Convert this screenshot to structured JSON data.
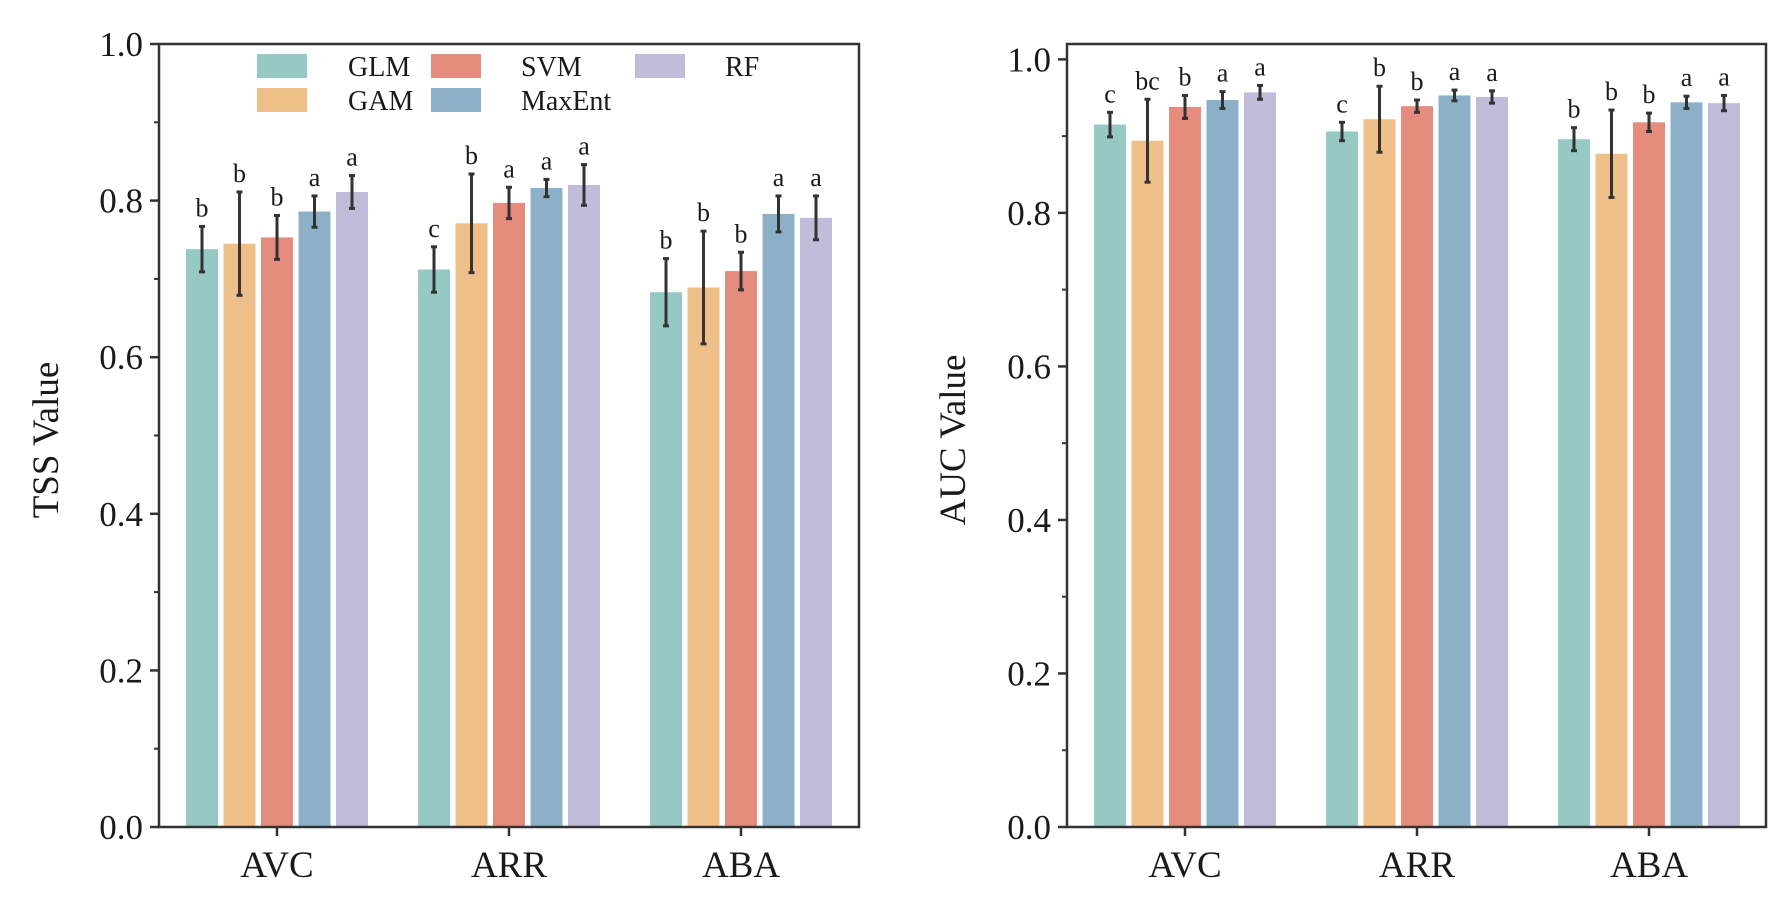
{
  "colors": {
    "GLM": "#96c8c4",
    "GAM": "#efbf8a",
    "SVM": "#e58c7e",
    "MaxEnt": "#8cb0c8",
    "RF": "#c0bcda",
    "axis": "#333333",
    "errorbar": "#333333"
  },
  "legend": {
    "placement": "top-center (left panel)",
    "entries": [
      "GLM",
      "GAM",
      "SVM",
      "MaxEnt",
      "RF"
    ]
  },
  "chart_data": [
    {
      "type": "bar",
      "id": "tss",
      "title": "",
      "xlabel": "",
      "ylabel": "TSS Value",
      "ylim": [
        0.0,
        1.0
      ],
      "yticks": [
        "0.0",
        "0.2",
        "0.4",
        "0.6",
        "0.8",
        "1.0"
      ],
      "ytick_values": [
        0.0,
        0.2,
        0.4,
        0.6,
        0.8,
        1.0
      ],
      "categories": [
        "AVC",
        "ARR",
        "ABA"
      ],
      "series": [
        {
          "name": "GLM",
          "values": [
            0.738,
            0.712,
            0.683
          ],
          "errors": [
            0.029,
            0.029,
            0.043
          ],
          "labels": [
            "b",
            "c",
            "b"
          ]
        },
        {
          "name": "GAM",
          "values": [
            0.745,
            0.771,
            0.689
          ],
          "errors": [
            0.066,
            0.063,
            0.072
          ],
          "labels": [
            "b",
            "b",
            "b"
          ]
        },
        {
          "name": "SVM",
          "values": [
            0.753,
            0.797,
            0.71
          ],
          "errors": [
            0.028,
            0.02,
            0.024
          ],
          "labels": [
            "b",
            "a",
            "b"
          ]
        },
        {
          "name": "MaxEnt",
          "values": [
            0.786,
            0.816,
            0.783
          ],
          "errors": [
            0.02,
            0.011,
            0.023
          ],
          "labels": [
            "a",
            "a",
            "a"
          ]
        },
        {
          "name": "RF",
          "values": [
            0.811,
            0.82,
            0.778
          ],
          "errors": [
            0.021,
            0.026,
            0.028
          ],
          "labels": [
            "a",
            "a",
            "a"
          ]
        }
      ]
    },
    {
      "type": "bar",
      "id": "auc",
      "title": "",
      "xlabel": "",
      "ylabel": "AUC Value",
      "ylim": [
        0.0,
        1.02
      ],
      "yticks": [
        "0.0",
        "0.2",
        "0.4",
        "0.6",
        "0.8",
        "1.0"
      ],
      "ytick_values": [
        0.0,
        0.2,
        0.4,
        0.6,
        0.8,
        1.0
      ],
      "categories": [
        "AVC",
        "ARR",
        "ABA"
      ],
      "series": [
        {
          "name": "GLM",
          "values": [
            0.915,
            0.906,
            0.896
          ],
          "errors": [
            0.016,
            0.012,
            0.015
          ],
          "labels": [
            "c",
            "c",
            "b"
          ]
        },
        {
          "name": "GAM",
          "values": [
            0.894,
            0.922,
            0.877
          ],
          "errors": [
            0.054,
            0.043,
            0.057
          ],
          "labels": [
            "bc",
            "b",
            "b"
          ]
        },
        {
          "name": "SVM",
          "values": [
            0.938,
            0.939,
            0.918
          ],
          "errors": [
            0.015,
            0.008,
            0.012
          ],
          "labels": [
            "b",
            "b",
            "b"
          ]
        },
        {
          "name": "MaxEnt",
          "values": [
            0.947,
            0.953,
            0.944
          ],
          "errors": [
            0.011,
            0.007,
            0.008
          ],
          "labels": [
            "a",
            "a",
            "a"
          ]
        },
        {
          "name": "RF",
          "values": [
            0.957,
            0.951,
            0.943
          ],
          "errors": [
            0.009,
            0.008,
            0.01
          ],
          "labels": [
            "a",
            "a",
            "a"
          ]
        }
      ]
    }
  ]
}
